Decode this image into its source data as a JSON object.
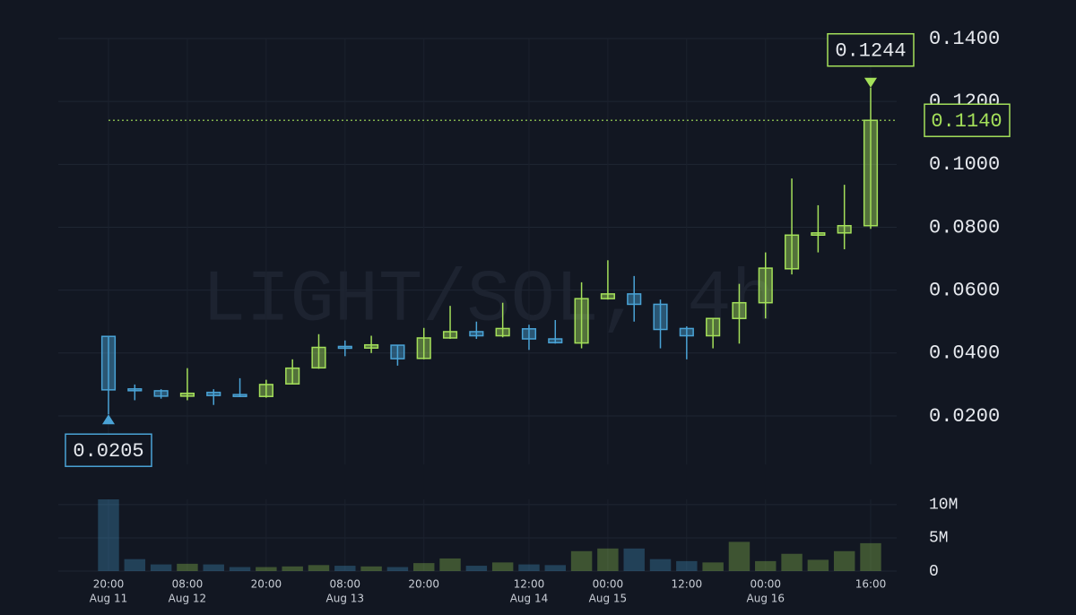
{
  "chart_data": {
    "type": "candlestick",
    "watermark": "LIGHT/SOL, 4h",
    "categories": [
      "20:00",
      null,
      null,
      "08:00",
      null,
      null,
      "20:00",
      null,
      null,
      "08:00",
      null,
      null,
      "20:00",
      null,
      null,
      null,
      "12:00",
      null,
      null,
      "00:00",
      null,
      null,
      "12:00",
      null,
      null,
      "00:00",
      null,
      null,
      null,
      "16:00"
    ],
    "dates": [
      "Aug 11",
      null,
      null,
      "Aug 12",
      null,
      null,
      null,
      null,
      null,
      "Aug 13",
      null,
      null,
      null,
      null,
      null,
      null,
      "Aug 14",
      null,
      null,
      "Aug 15",
      null,
      null,
      null,
      null,
      null,
      "Aug 16",
      null,
      null,
      null,
      null
    ],
    "open": [
      0.0453,
      0.0286,
      0.028,
      0.0263,
      0.0275,
      0.0268,
      0.0262,
      0.0302,
      0.0353,
      0.0421,
      0.0416,
      0.0425,
      0.0383,
      0.0448,
      0.0468,
      0.0455,
      0.0477,
      0.0445,
      0.0432,
      0.0573,
      0.0588,
      0.0555,
      0.0478,
      0.0455,
      0.051,
      0.056,
      0.0668,
      0.0775,
      0.0782,
      0.0805
    ],
    "high": [
      0.0453,
      0.03,
      0.0285,
      0.0352,
      0.0285,
      0.032,
      0.0315,
      0.038,
      0.046,
      0.044,
      0.0455,
      0.0425,
      0.048,
      0.055,
      0.05,
      0.056,
      0.049,
      0.0505,
      0.0625,
      0.0695,
      0.0645,
      0.057,
      0.0485,
      0.051,
      0.062,
      0.072,
      0.0955,
      0.087,
      0.0935,
      0.1244
    ],
    "low": [
      0.0205,
      0.025,
      0.0255,
      0.025,
      0.0235,
      0.026,
      0.0258,
      0.03,
      0.035,
      0.039,
      0.04,
      0.036,
      0.038,
      0.0445,
      0.0445,
      0.045,
      0.041,
      0.043,
      0.0415,
      0.057,
      0.05,
      0.0415,
      0.038,
      0.0415,
      0.043,
      0.051,
      0.065,
      0.072,
      0.073,
      0.0795
    ],
    "close": [
      0.0283,
      0.0282,
      0.0263,
      0.0272,
      0.0265,
      0.0262,
      0.03,
      0.0352,
      0.0418,
      0.0418,
      0.0426,
      0.0382,
      0.0448,
      0.0468,
      0.0455,
      0.0478,
      0.0445,
      0.0433,
      0.0573,
      0.0588,
      0.0555,
      0.0475,
      0.0455,
      0.051,
      0.056,
      0.067,
      0.0775,
      0.0782,
      0.0805,
      0.114
    ],
    "volume": [
      10.8,
      1.8,
      1.0,
      1.1,
      1.0,
      0.6,
      0.6,
      0.7,
      0.9,
      0.8,
      0.7,
      0.6,
      1.2,
      1.9,
      0.8,
      1.3,
      1.0,
      0.9,
      3.0,
      3.4,
      3.4,
      1.8,
      1.5,
      1.3,
      4.4,
      1.5,
      2.6,
      1.7,
      3.0,
      4.2
    ],
    "up_color": "#a4e05a",
    "down_color": "#4aa3d6",
    "ylim": [
      0.0046,
      0.14
    ],
    "yticks": [
      {
        "value": 0.02,
        "label": "0.0200"
      },
      {
        "value": 0.04,
        "label": "0.0400"
      },
      {
        "value": 0.06,
        "label": "0.0600"
      },
      {
        "value": 0.08,
        "label": "0.0800"
      },
      {
        "value": 0.1,
        "label": "0.1000"
      },
      {
        "value": 0.12,
        "label": "0.1200"
      },
      {
        "value": 0.14,
        "label": "0.1400"
      }
    ],
    "volume_ylim": [
      0,
      10.8
    ],
    "volume_yticks": [
      {
        "value": 10,
        "label": "10M"
      },
      {
        "value": 5,
        "label": "5M"
      },
      0
    ],
    "low_marker": {
      "value": 0.0205,
      "label": "0.0205"
    },
    "high_marker": {
      "value": 0.1244,
      "label": "0.1244"
    },
    "last_price": {
      "value": 0.114,
      "label": "0.1140"
    },
    "grid": true
  }
}
